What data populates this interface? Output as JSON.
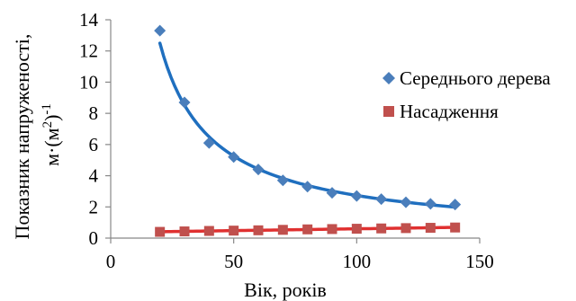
{
  "chart_data": {
    "type": "scatter",
    "title": "",
    "xlabel": "Вік, років",
    "ylabel_line1": "Показник напруженості,",
    "ylabel_line2_base": "м·(м",
    "ylabel_line2_sup_inner": "2",
    "ylabel_line2_close": ")",
    "ylabel_line2_sup_outer": "-1",
    "xlim": [
      0,
      150
    ],
    "ylim": [
      0,
      14
    ],
    "x_ticks": [
      "0",
      "50",
      "100",
      "150"
    ],
    "y_ticks": [
      "0",
      "2",
      "4",
      "6",
      "8",
      "10",
      "12",
      "14"
    ],
    "grid": false,
    "legend_position": "right",
    "series": [
      {
        "name": "Середнього дерева",
        "marker": "diamond",
        "color": "#4a7ebb",
        "trend_color": "#1f6fbf",
        "trend": "power",
        "x": [
          20,
          30,
          40,
          50,
          60,
          70,
          80,
          90,
          100,
          110,
          120,
          130,
          140
        ],
        "y": [
          13.3,
          8.7,
          6.1,
          5.2,
          4.4,
          3.7,
          3.3,
          2.9,
          2.7,
          2.5,
          2.3,
          2.2,
          2.15
        ]
      },
      {
        "name": "Насадження",
        "marker": "square",
        "color": "#c0504d",
        "trend_color": "#e03030",
        "trend": "linear",
        "x": [
          20,
          30,
          40,
          50,
          60,
          70,
          80,
          90,
          100,
          110,
          120,
          130,
          140
        ],
        "y": [
          0.4,
          0.43,
          0.46,
          0.48,
          0.5,
          0.53,
          0.56,
          0.58,
          0.6,
          0.62,
          0.64,
          0.66,
          0.68
        ]
      }
    ]
  }
}
